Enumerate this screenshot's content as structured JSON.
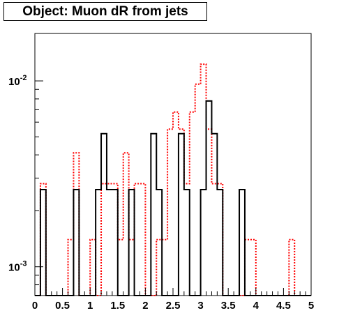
{
  "chart_data": {
    "type": "line",
    "title": "Object: Muon dR from jets",
    "xlabel": "",
    "ylabel": "",
    "xlim": [
      0,
      5
    ],
    "ylim": [
      0.0007,
      0.018
    ],
    "yscale": "log",
    "grid": false,
    "bin_width": 0.1,
    "x_ticks": [
      "0",
      "0.5",
      "1",
      "1.5",
      "2",
      "2.5",
      "3",
      "3.5",
      "4",
      "4.5",
      "5"
    ],
    "x_tick_values": [
      0,
      0.5,
      1,
      1.5,
      2,
      2.5,
      3,
      3.5,
      4,
      4.5,
      5
    ],
    "y_major_ticks": [
      {
        "value": 0.001,
        "base": "10",
        "exp": "-3"
      },
      {
        "value": 0.01,
        "base": "10",
        "exp": "-2"
      }
    ],
    "series": [
      {
        "color": "#000000",
        "style": "solid",
        "values": [
          0,
          0.0026,
          0,
          0,
          0,
          0,
          0,
          0.0026,
          0,
          0,
          0,
          0.0026,
          0.0052,
          0.0026,
          0.0026,
          0,
          0,
          0.0026,
          0,
          0,
          0,
          0.0052,
          0.0026,
          0,
          0,
          0,
          0.0052,
          0.0026,
          0,
          0,
          0.0026,
          0.0078,
          0.0052,
          0.0026,
          0,
          0,
          0,
          0.0026,
          0,
          0,
          0,
          0,
          0,
          0,
          0,
          0,
          0,
          0,
          0,
          0
        ]
      },
      {
        "color": "#ff0000",
        "style": "dashed",
        "values": [
          0,
          0.0028,
          0,
          0,
          0,
          0,
          0.0014,
          0.0041,
          0,
          0,
          0.0014,
          0,
          0.0028,
          0.0028,
          0.0028,
          0.0014,
          0.0041,
          0.0014,
          0.0028,
          0.0028,
          0,
          0,
          0.0014,
          0.0014,
          0.0055,
          0.0068,
          0.0055,
          0.0028,
          0.0068,
          0.0096,
          0.0123,
          0.0055,
          0.0028,
          0.0028,
          0,
          0,
          0,
          0,
          0.0014,
          0.0014,
          0,
          0,
          0,
          0,
          0,
          0,
          0.0014,
          0,
          0,
          0
        ]
      }
    ]
  }
}
